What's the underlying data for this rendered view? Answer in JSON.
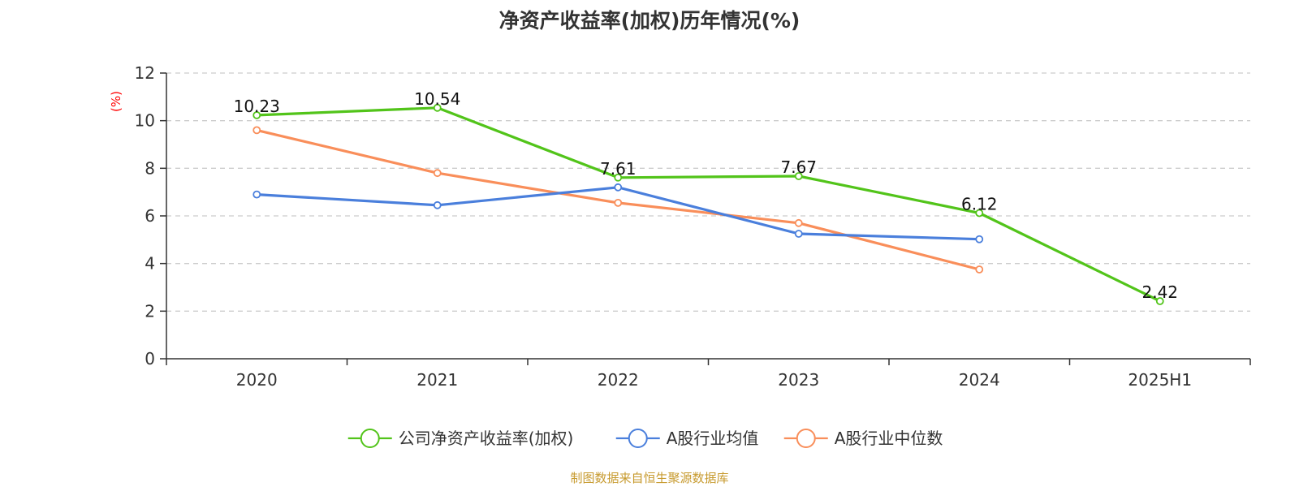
{
  "chart_data": {
    "type": "line",
    "title": "净资产收益率(加权)历年情况(%)",
    "ylabel": "(%)",
    "xlabel": "",
    "categories": [
      "2020",
      "2021",
      "2022",
      "2023",
      "2024",
      "2025H1"
    ],
    "yticks": [
      0,
      2,
      4,
      6,
      8,
      10,
      12
    ],
    "ylim": [
      0,
      12
    ],
    "grid": true,
    "legend_position": "bottom",
    "series": [
      {
        "name": "公司净资产收益率(加权)",
        "color": "#52c41a",
        "values": [
          10.23,
          10.54,
          7.61,
          7.67,
          6.12,
          2.42
        ],
        "labels": [
          "10.23",
          "10.54",
          "7.61",
          "7.67",
          "6.12",
          "2.42"
        ],
        "show_labels": true
      },
      {
        "name": "A股行业均值",
        "color": "#4a7fdc",
        "values": [
          6.9,
          6.45,
          7.2,
          5.25,
          5.02,
          null
        ],
        "show_labels": false
      },
      {
        "name": "A股行业中位数",
        "color": "#f98e5a",
        "values": [
          9.6,
          7.8,
          6.55,
          5.7,
          3.75,
          null
        ],
        "show_labels": false
      }
    ]
  },
  "footer": {
    "source": "制图数据来自恒生聚源数据库"
  }
}
